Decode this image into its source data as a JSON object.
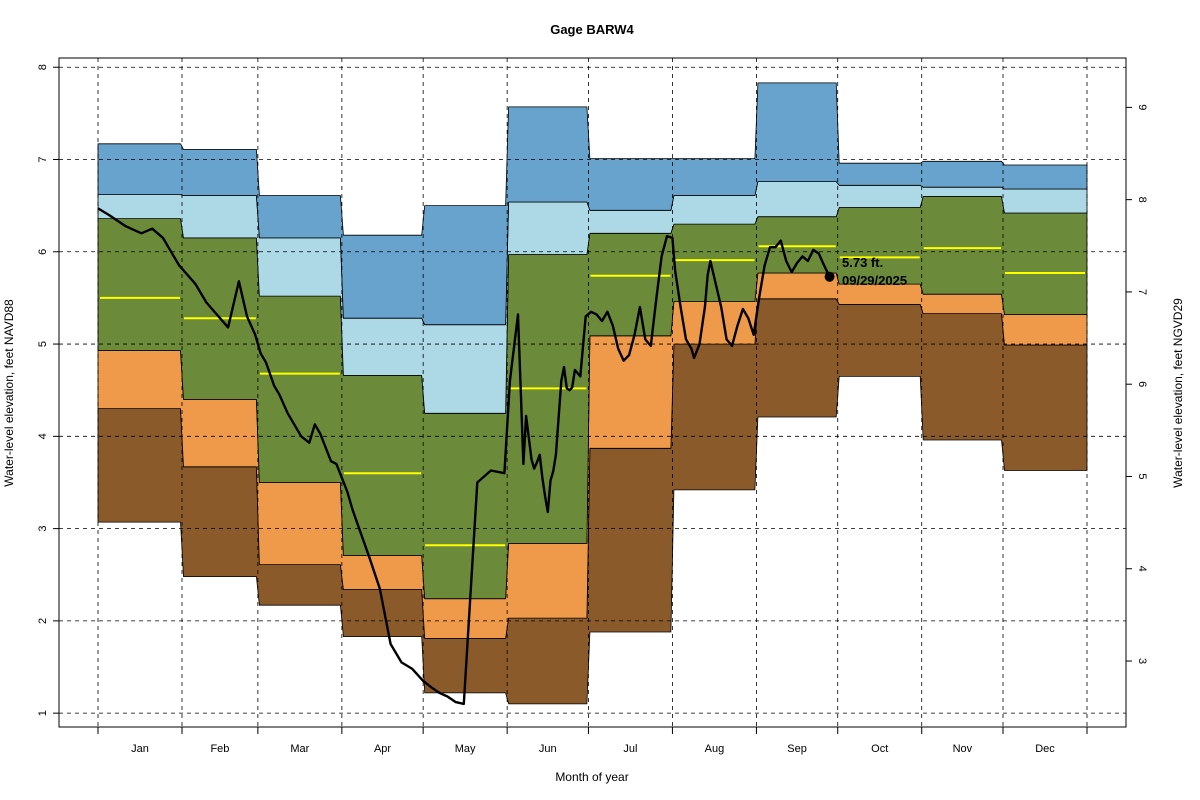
{
  "chart_data": {
    "type": "area",
    "title": "Gage BARW4",
    "xlabel": "Month of year",
    "ylabel": "Water-level elevation, feet NAVD88",
    "ylabel_right": "Water-level elevation, feet NGVD29",
    "ylim": [
      0.85,
      8.1
    ],
    "y_ticks": [
      1,
      2,
      3,
      4,
      5,
      6,
      7,
      8
    ],
    "right_axis_offset_ft": 1.435,
    "y2_ticks": [
      3,
      4,
      5,
      6,
      7,
      8,
      9
    ],
    "grid": true,
    "months": [
      "Jan",
      "Feb",
      "Mar",
      "Apr",
      "May",
      "Jun",
      "Jul",
      "Aug",
      "Sep",
      "Oct",
      "Nov",
      "Dec"
    ],
    "month_bounds_day": [
      0,
      31,
      59,
      90,
      120,
      151,
      181,
      212,
      243,
      273,
      304,
      334,
      365
    ],
    "band_colors": {
      "p0_p10": "#8b5a2b",
      "p10_p25": "#ee9a4a",
      "p25_p75": "#6b8a3a",
      "p75_p90": "#add8e6",
      "p90_p100": "#67a3cc",
      "median": "#ffff00",
      "daily": "#000000"
    },
    "percentiles": {
      "min": [
        3.07,
        2.48,
        2.17,
        1.83,
        1.22,
        1.1,
        1.88,
        3.42,
        4.21,
        4.65,
        3.96,
        3.63
      ],
      "p10": [
        4.3,
        3.67,
        2.61,
        2.34,
        1.81,
        2.03,
        3.87,
        5.0,
        5.49,
        5.43,
        5.33,
        4.99
      ],
      "p25": [
        4.93,
        4.4,
        3.5,
        2.71,
        2.24,
        2.84,
        5.09,
        5.46,
        5.77,
        5.65,
        5.54,
        5.32
      ],
      "median": [
        5.5,
        5.28,
        4.68,
        3.6,
        2.82,
        4.52,
        5.74,
        5.91,
        6.06,
        5.94,
        6.04,
        5.77
      ],
      "p75": [
        6.36,
        6.15,
        5.52,
        4.66,
        4.25,
        5.97,
        6.2,
        6.3,
        6.38,
        6.48,
        6.6,
        6.42
      ],
      "p90": [
        6.62,
        6.61,
        6.15,
        5.28,
        5.21,
        6.54,
        6.45,
        6.61,
        6.76,
        6.72,
        6.7,
        6.68
      ],
      "max": [
        7.17,
        7.11,
        6.61,
        6.18,
        6.5,
        7.57,
        7.01,
        7.01,
        7.83,
        6.96,
        6.98,
        6.94
      ]
    },
    "daily_series": {
      "name": "Daily water level",
      "day_of_year": [
        0,
        4,
        10,
        16,
        20,
        24,
        26,
        30,
        36,
        40,
        43,
        48,
        52,
        55,
        58,
        60,
        62,
        65,
        67,
        70,
        75,
        78,
        80,
        82,
        84,
        86,
        88,
        90,
        92,
        94,
        97,
        100,
        104,
        108,
        112,
        116,
        120,
        123,
        126,
        129,
        132,
        135,
        140,
        145,
        150,
        152,
        155,
        157,
        158,
        160,
        161,
        162,
        163,
        164,
        165,
        166,
        167,
        168,
        169,
        170,
        171,
        172,
        173,
        174,
        175,
        176,
        178,
        180,
        182,
        184,
        186,
        188,
        190,
        192,
        194,
        196,
        198,
        200,
        202,
        204,
        206,
        208,
        210,
        212,
        213,
        215,
        217,
        219,
        220,
        222,
        224,
        225,
        226,
        228,
        230,
        232,
        234,
        236,
        238,
        240,
        242,
        244,
        246,
        248,
        250,
        252,
        254,
        256,
        258,
        260,
        262,
        264,
        266,
        268,
        270
      ],
      "values": [
        6.47,
        6.4,
        6.28,
        6.2,
        6.25,
        6.15,
        6.05,
        5.85,
        5.65,
        5.45,
        5.35,
        5.18,
        5.68,
        5.3,
        5.1,
        4.9,
        4.8,
        4.55,
        4.45,
        4.25,
        4.0,
        3.93,
        4.13,
        4.03,
        3.88,
        3.73,
        3.7,
        3.55,
        3.4,
        3.2,
        2.95,
        2.7,
        2.35,
        1.75,
        1.55,
        1.48,
        1.35,
        1.28,
        1.22,
        1.18,
        1.12,
        1.1,
        3.5,
        3.63,
        3.6,
        4.6,
        5.32,
        3.7,
        4.22,
        3.75,
        3.65,
        3.72,
        3.8,
        3.55,
        3.35,
        3.18,
        3.52,
        3.62,
        3.8,
        4.2,
        4.6,
        4.75,
        4.52,
        4.5,
        4.53,
        4.72,
        4.65,
        5.3,
        5.35,
        5.32,
        5.25,
        5.35,
        5.2,
        4.95,
        4.82,
        4.88,
        5.1,
        5.4,
        5.05,
        4.98,
        5.48,
        5.95,
        6.17,
        6.15,
        5.8,
        5.4,
        5.05,
        4.95,
        4.85,
        5.0,
        5.4,
        5.75,
        5.9,
        5.65,
        5.4,
        5.05,
        4.98,
        5.2,
        5.38,
        5.28,
        5.1,
        5.5,
        5.85,
        6.05,
        6.05,
        6.12,
        5.9,
        5.78,
        5.88,
        5.95,
        5.9,
        6.02,
        5.98,
        5.85,
        5.73
      ]
    },
    "latest_point": {
      "day_of_year": 270,
      "value": 5.73
    },
    "annotation": {
      "value_label": "5.73 ft.",
      "date_label": "09/29/2025"
    }
  }
}
